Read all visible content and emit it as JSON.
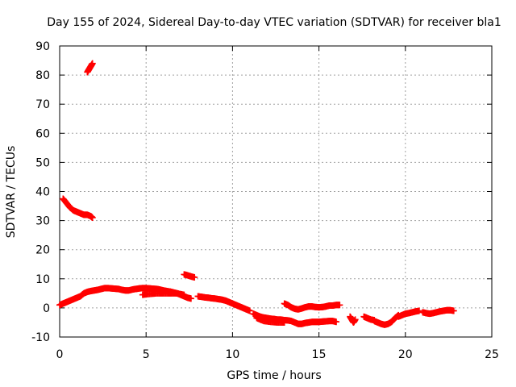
{
  "chart_data": {
    "type": "scatter",
    "title": "Day 155 of 2024, Sidereal Day-to-day VTEC variation (SDTVAR) for receiver bla1",
    "xlabel": "GPS time / hours",
    "ylabel": "SDTVAR / TECUs",
    "xlim": [
      0,
      25
    ],
    "ylim": [
      -10,
      90
    ],
    "xticks": [
      0,
      5,
      10,
      15,
      20,
      25
    ],
    "yticks": [
      -10,
      0,
      10,
      20,
      30,
      40,
      50,
      60,
      70,
      80,
      90
    ],
    "grid": true,
    "marker": "+",
    "color": "#ff0000",
    "series": [
      {
        "name": "SDTVAR",
        "segments": [
          [
            [
              1.6,
              81
            ],
            [
              1.7,
              82
            ],
            [
              1.8,
              83
            ],
            [
              1.9,
              84
            ]
          ],
          [
            [
              0.2,
              37.5
            ],
            [
              0.4,
              36
            ],
            [
              0.6,
              34.5
            ],
            [
              0.8,
              33.5
            ],
            [
              1.0,
              33
            ],
            [
              1.2,
              32.5
            ],
            [
              1.4,
              32
            ],
            [
              1.6,
              32
            ],
            [
              1.8,
              31.5
            ],
            [
              1.9,
              31
            ]
          ],
          [
            [
              0.0,
              1
            ],
            [
              0.2,
              1.5
            ],
            [
              0.4,
              2
            ],
            [
              0.6,
              2.5
            ],
            [
              0.8,
              3
            ],
            [
              1.0,
              3.5
            ],
            [
              1.2,
              4
            ],
            [
              1.4,
              5
            ],
            [
              1.6,
              5.5
            ],
            [
              1.8,
              5.8
            ],
            [
              2.0,
              6
            ],
            [
              2.2,
              6.2
            ],
            [
              2.4,
              6.5
            ],
            [
              2.6,
              6.8
            ],
            [
              2.8,
              6.8
            ],
            [
              3.0,
              6.7
            ],
            [
              3.2,
              6.6
            ],
            [
              3.4,
              6.5
            ],
            [
              3.6,
              6.2
            ],
            [
              3.8,
              6
            ],
            [
              4.0,
              6
            ],
            [
              4.2,
              6.3
            ],
            [
              4.4,
              6.5
            ],
            [
              4.6,
              6.7
            ],
            [
              4.8,
              6.8
            ],
            [
              5.0,
              6.8
            ],
            [
              5.2,
              6.7
            ],
            [
              5.4,
              6.6
            ],
            [
              5.6,
              6.5
            ],
            [
              5.8,
              6.3
            ],
            [
              6.0,
              6
            ],
            [
              6.2,
              5.8
            ],
            [
              6.4,
              5.6
            ],
            [
              6.6,
              5.3
            ],
            [
              6.8,
              5
            ],
            [
              7.0,
              4.5
            ],
            [
              7.2,
              4
            ],
            [
              7.4,
              3.5
            ],
            [
              7.6,
              3.2
            ]
          ],
          [
            [
              4.8,
              4.5
            ],
            [
              5.2,
              4.8
            ],
            [
              5.6,
              5
            ],
            [
              6.0,
              5
            ],
            [
              6.4,
              5
            ],
            [
              6.8,
              5
            ],
            [
              7.2,
              4.5
            ]
          ],
          [
            [
              7.2,
              11.5
            ],
            [
              7.4,
              11.2
            ],
            [
              7.6,
              10.8
            ],
            [
              7.8,
              10.5
            ]
          ],
          [
            [
              8.0,
              4
            ],
            [
              8.2,
              3.8
            ],
            [
              8.4,
              3.6
            ],
            [
              8.6,
              3.5
            ],
            [
              8.8,
              3.3
            ],
            [
              9.0,
              3.2
            ],
            [
              9.2,
              3
            ],
            [
              9.4,
              2.8
            ],
            [
              9.6,
              2.5
            ],
            [
              9.8,
              2
            ],
            [
              10.0,
              1.5
            ],
            [
              10.2,
              1
            ],
            [
              10.4,
              0.5
            ],
            [
              10.6,
              0
            ],
            [
              10.8,
              -0.5
            ],
            [
              11.0,
              -1
            ]
          ],
          [
            [
              11.2,
              -2
            ],
            [
              11.4,
              -2.5
            ],
            [
              11.6,
              -3
            ],
            [
              11.8,
              -3.3
            ],
            [
              12.0,
              -3.5
            ],
            [
              12.2,
              -3.7
            ],
            [
              12.4,
              -3.8
            ],
            [
              12.6,
              -4
            ],
            [
              12.8,
              -4
            ],
            [
              13.0,
              -4.2
            ],
            [
              13.2,
              -4.3
            ],
            [
              13.4,
              -4.5
            ],
            [
              13.6,
              -5
            ],
            [
              13.8,
              -5.5
            ],
            [
              14.0,
              -5.5
            ],
            [
              14.2,
              -5.2
            ],
            [
              14.4,
              -5
            ],
            [
              14.6,
              -4.8
            ],
            [
              14.8,
              -4.8
            ],
            [
              15.0,
              -4.8
            ],
            [
              15.2,
              -4.7
            ],
            [
              15.4,
              -4.6
            ],
            [
              15.6,
              -4.5
            ],
            [
              15.8,
              -4.5
            ],
            [
              16.0,
              -4.8
            ]
          ],
          [
            [
              11.4,
              -3.5
            ],
            [
              11.8,
              -4.5
            ],
            [
              12.2,
              -4.8
            ],
            [
              12.6,
              -5
            ],
            [
              13.0,
              -5
            ]
          ],
          [
            [
              13.0,
              1.5
            ],
            [
              13.2,
              1
            ],
            [
              13.4,
              0.2
            ],
            [
              13.6,
              -0.3
            ],
            [
              13.8,
              -0.5
            ],
            [
              14.0,
              -0.2
            ],
            [
              14.2,
              0.2
            ],
            [
              14.4,
              0.5
            ],
            [
              14.6,
              0.5
            ],
            [
              14.8,
              0.3
            ],
            [
              15.0,
              0.2
            ],
            [
              15.2,
              0.3
            ],
            [
              15.4,
              0.5
            ],
            [
              15.6,
              0.8
            ],
            [
              15.8,
              0.8
            ],
            [
              16.0,
              1
            ],
            [
              16.2,
              1
            ]
          ],
          [
            [
              16.8,
              -3
            ],
            [
              16.9,
              -4
            ],
            [
              17.0,
              -5
            ],
            [
              17.1,
              -4
            ]
          ],
          [
            [
              17.6,
              -3
            ],
            [
              17.8,
              -3.5
            ],
            [
              18.0,
              -4
            ],
            [
              18.2,
              -4.2
            ]
          ],
          [
            [
              18.2,
              -4.5
            ],
            [
              18.4,
              -5
            ],
            [
              18.6,
              -5.5
            ],
            [
              18.8,
              -5.8
            ],
            [
              19.0,
              -5.5
            ],
            [
              19.2,
              -4.8
            ],
            [
              19.4,
              -3.5
            ],
            [
              19.6,
              -2.5
            ]
          ],
          [
            [
              19.6,
              -3
            ],
            [
              19.8,
              -2.5
            ],
            [
              20.0,
              -2
            ],
            [
              20.2,
              -1.8
            ],
            [
              20.4,
              -1.5
            ],
            [
              20.6,
              -1.2
            ],
            [
              20.8,
              -1
            ]
          ],
          [
            [
              21.0,
              -1.5
            ],
            [
              21.2,
              -1.8
            ],
            [
              21.4,
              -2
            ],
            [
              21.6,
              -1.8
            ],
            [
              21.8,
              -1.5
            ],
            [
              22.0,
              -1.2
            ],
            [
              22.2,
              -1
            ],
            [
              22.4,
              -0.8
            ],
            [
              22.6,
              -0.8
            ],
            [
              22.8,
              -1
            ]
          ]
        ]
      }
    ]
  }
}
